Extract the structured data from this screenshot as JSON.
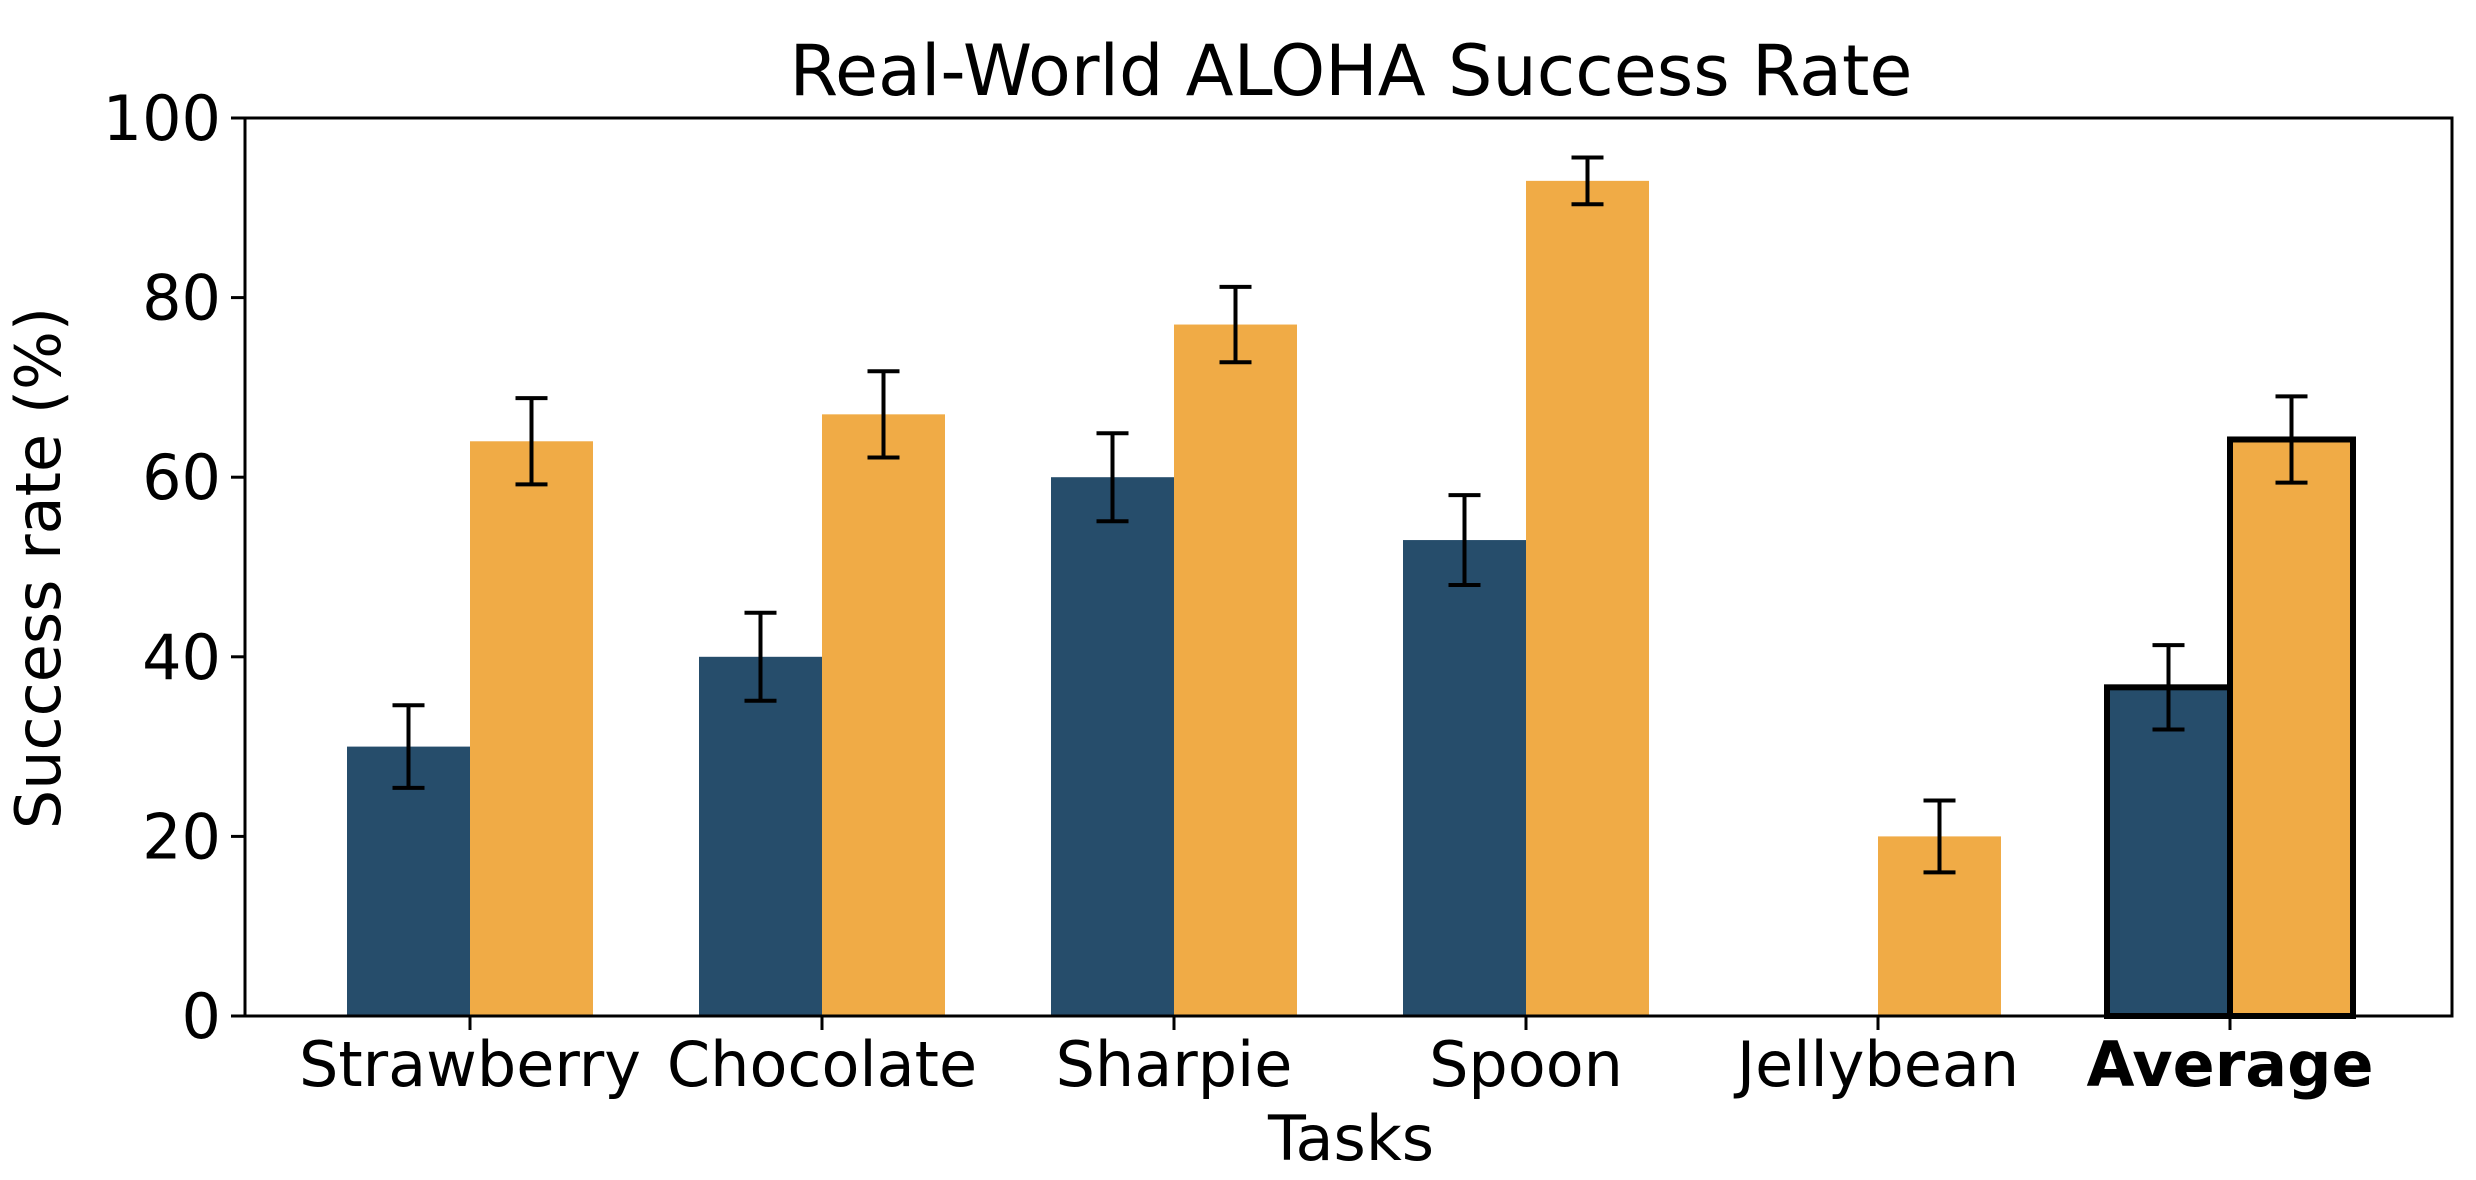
{
  "chart_data": {
    "type": "bar",
    "title": "Real-World ALOHA Success Rate",
    "xlabel": "Tasks",
    "ylabel": "Success rate (%)",
    "ylim": [
      0,
      100
    ],
    "yticks": [
      0,
      20,
      40,
      60,
      80,
      100
    ],
    "ytick_labels": [
      "0",
      "20",
      "40",
      "60",
      "80",
      "100"
    ],
    "categories": [
      "Strawberry",
      "Chocolate",
      "Sharpie",
      "Spoon",
      "Jellybean",
      "Average"
    ],
    "highlight_category": "Average",
    "grid": false,
    "legend": "none",
    "series": [
      {
        "color": "#264d6b",
        "values": [
          30,
          40,
          60,
          53,
          0,
          36.6
        ],
        "error": [
          4.6,
          4.9,
          4.9,
          5.0,
          0,
          4.7
        ]
      },
      {
        "color": "#f0ab46",
        "values": [
          64,
          67,
          77,
          93,
          20,
          64.2
        ],
        "error": [
          4.8,
          4.8,
          4.2,
          2.6,
          4.0,
          4.8
        ]
      }
    ]
  }
}
